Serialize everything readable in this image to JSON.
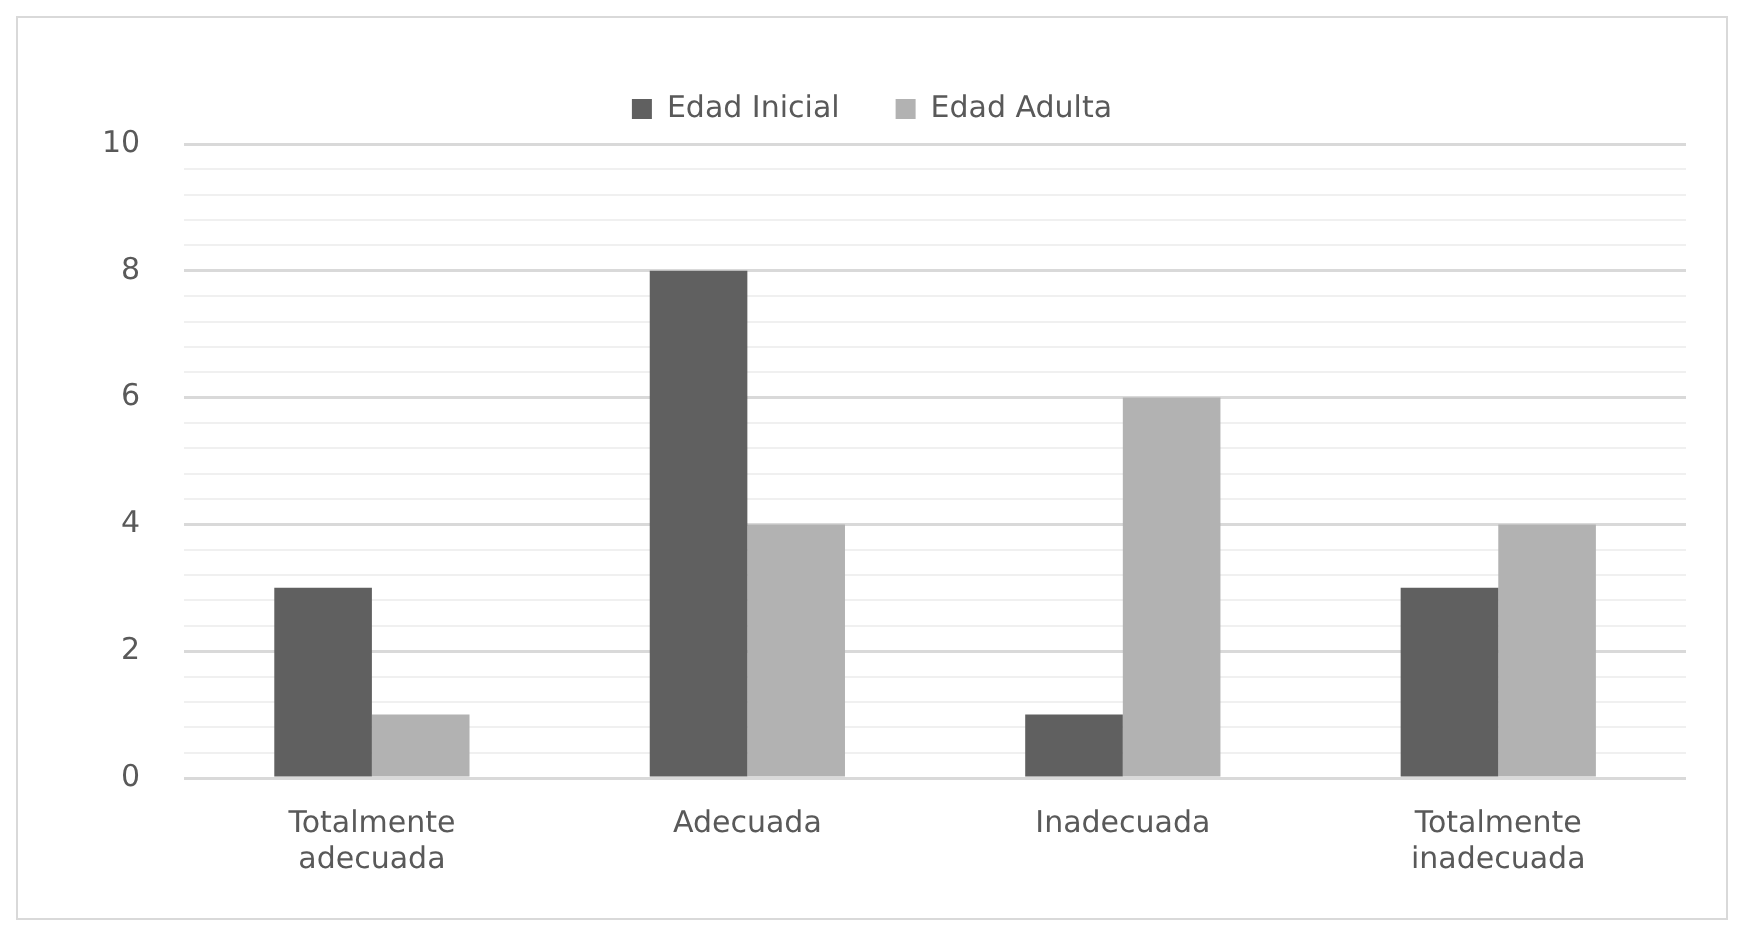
{
  "chart_data": {
    "type": "bar",
    "categories": [
      "Totalmente adecuada",
      "Adecuada",
      "Inadecuada",
      "Totalmente inadecuada"
    ],
    "series": [
      {
        "name": "Edad Inicial",
        "color": "#606060",
        "values": [
          3,
          8,
          1,
          3
        ]
      },
      {
        "name": "Edad Adulta",
        "color": "#b2b2b2",
        "values": [
          1,
          4,
          6,
          4
        ]
      }
    ],
    "ylim": [
      0,
      10
    ],
    "yticks": [
      0,
      {
        "value": 0.4,
        "label": null
      },
      {
        "value": 0.8,
        "label": null
      },
      {
        "value": 1.2,
        "label": null
      },
      {
        "value": 1.6,
        "label": null
      },
      2,
      {
        "value": 2.4,
        "label": null
      },
      {
        "value": 2.8,
        "label": null
      },
      {
        "value": 3.2,
        "label": null
      },
      {
        "value": 3.6,
        "label": null
      },
      4,
      {
        "value": 4.4,
        "label": null
      },
      {
        "value": 4.8,
        "label": null
      },
      {
        "value": 5.2,
        "label": null
      },
      {
        "value": 5.6,
        "label": null
      },
      6,
      {
        "value": 6.4,
        "label": null
      },
      {
        "value": 6.8,
        "label": null
      },
      {
        "value": 7.2,
        "label": null
      },
      {
        "value": 7.6,
        "label": null
      },
      8,
      {
        "value": 8.4,
        "label": null
      },
      {
        "value": 8.8,
        "label": null
      },
      {
        "value": 9.2,
        "label": null
      },
      {
        "value": 9.6,
        "label": null
      },
      10
    ],
    "grid": "y",
    "legend": "top"
  }
}
